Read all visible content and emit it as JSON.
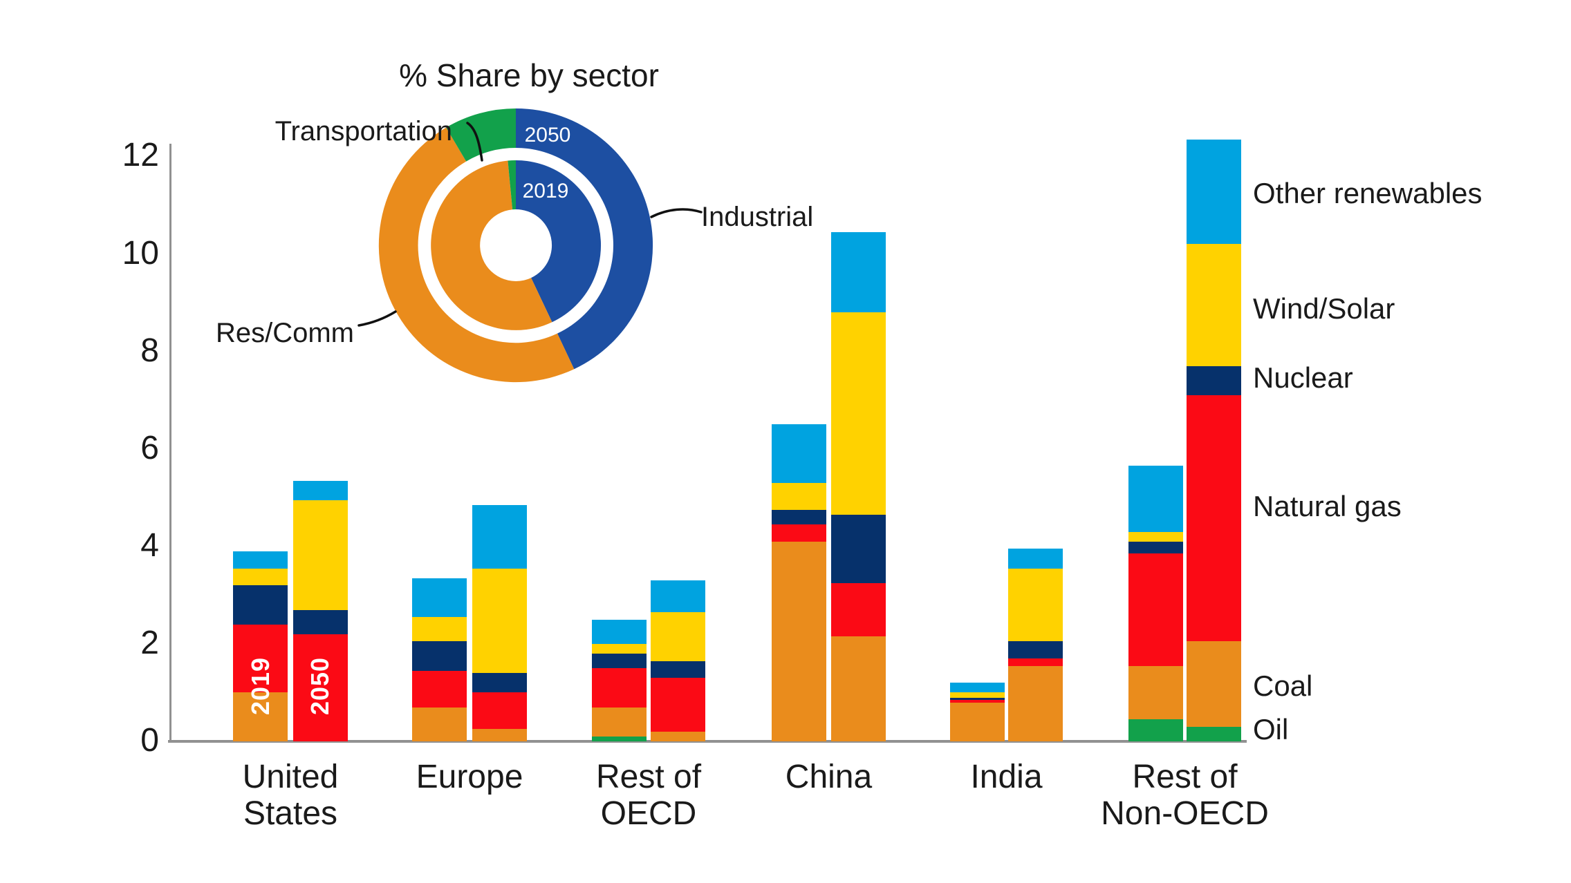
{
  "title": "% Share by sector",
  "donut": {
    "sector_labels": [
      "Transportation",
      "Res/Comm",
      "Industrial"
    ],
    "colors": {
      "Industrial": "#1D4FA2",
      "Res/Comm": "#EA8C1C",
      "Transportation": "#12A14B"
    },
    "rings": [
      {
        "label": "2050",
        "position": "outer",
        "shares": [
          {
            "sector": "Industrial",
            "pct": 43
          },
          {
            "sector": "Res/Comm",
            "pct": 48.5
          },
          {
            "sector": "Transportation",
            "pct": 8.5
          }
        ]
      },
      {
        "label": "2019",
        "position": "inner",
        "shares": [
          {
            "sector": "Industrial",
            "pct": 43
          },
          {
            "sector": "Res/Comm",
            "pct": 55.5
          },
          {
            "sector": "Transportation",
            "pct": 1.5
          }
        ]
      }
    ]
  },
  "axis": {
    "yticks": [
      0,
      2,
      4,
      6,
      8,
      10,
      12
    ]
  },
  "chart_data": {
    "type": "bar",
    "stacked": true,
    "title": "% Share by sector",
    "ylim": [
      0,
      12
    ],
    "grid": false,
    "legend_position": "right",
    "categories": [
      {
        "label": "United States",
        "label_lines": [
          "United",
          "States"
        ]
      },
      {
        "label": "Europe",
        "label_lines": [
          "Europe"
        ]
      },
      {
        "label": "Rest of OECD",
        "label_lines": [
          "Rest of",
          "OECD"
        ]
      },
      {
        "label": "China",
        "label_lines": [
          "China"
        ]
      },
      {
        "label": "India",
        "label_lines": [
          "India"
        ]
      },
      {
        "label": "Rest of Non-OECD",
        "label_lines": [
          "Rest of",
          "Non-OECD"
        ]
      }
    ],
    "years": [
      "2019",
      "2050"
    ],
    "series": [
      {
        "name": "Oil",
        "color": "#12A14B",
        "values": [
          [
            0,
            0
          ],
          [
            0,
            0
          ],
          [
            0.1,
            0
          ],
          [
            0,
            0
          ],
          [
            0,
            0
          ],
          [
            0.45,
            0.3
          ]
        ]
      },
      {
        "name": "Coal",
        "color": "#EA8C1C",
        "values": [
          [
            1.0,
            0
          ],
          [
            0.7,
            0.25
          ],
          [
            0.6,
            0.2
          ],
          [
            4.1,
            2.15
          ],
          [
            0.8,
            1.55
          ],
          [
            1.1,
            1.75
          ]
        ]
      },
      {
        "name": "Natural gas",
        "color": "#FB0A15",
        "values": [
          [
            1.4,
            2.2
          ],
          [
            0.75,
            0.75
          ],
          [
            0.8,
            1.1
          ],
          [
            0.35,
            1.1
          ],
          [
            0.05,
            0.15
          ],
          [
            2.3,
            5.05
          ]
        ]
      },
      {
        "name": "Nuclear",
        "color": "#06316B",
        "values": [
          [
            0.8,
            0.5
          ],
          [
            0.6,
            0.4
          ],
          [
            0.3,
            0.35
          ],
          [
            0.3,
            1.4
          ],
          [
            0.05,
            0.35
          ],
          [
            0.25,
            0.6
          ]
        ]
      },
      {
        "name": "Wind/Solar",
        "color": "#FFD200",
        "values": [
          [
            0.35,
            2.25
          ],
          [
            0.5,
            2.15
          ],
          [
            0.2,
            1.0
          ],
          [
            0.55,
            4.15
          ],
          [
            0.1,
            1.5
          ],
          [
            0.2,
            2.5
          ]
        ]
      },
      {
        "name": "Other renewables",
        "color": "#00A3E0",
        "values": [
          [
            0.35,
            0.4
          ],
          [
            0.8,
            1.3
          ],
          [
            0.5,
            0.65
          ],
          [
            1.2,
            1.65
          ],
          [
            0.2,
            0.4
          ],
          [
            1.35,
            2.15
          ]
        ]
      }
    ]
  },
  "legend": {
    "items": [
      {
        "label": "Other renewables",
        "color": "#00A3E0"
      },
      {
        "label": "Wind/Solar",
        "color": "#FFD200"
      },
      {
        "label": "Nuclear",
        "color": "#06316B"
      },
      {
        "label": "Natural gas",
        "color": "#FB0A15"
      },
      {
        "label": "Coal",
        "color": "#EA8C1C"
      },
      {
        "label": "Oil",
        "color": "#12A14B"
      }
    ]
  }
}
